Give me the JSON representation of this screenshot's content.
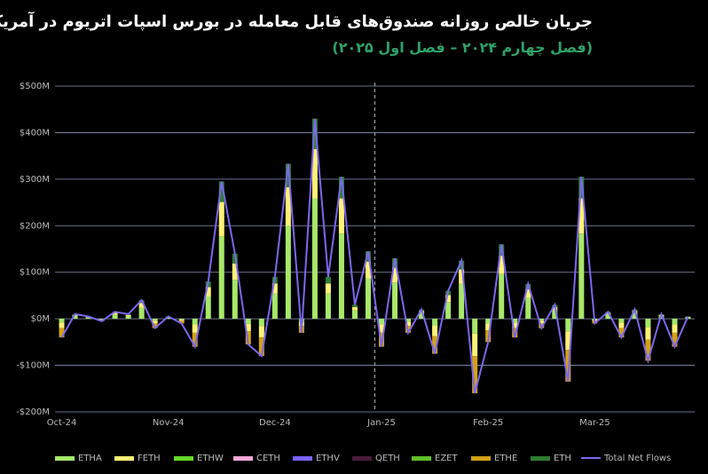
{
  "chart_data": {
    "type": "bar",
    "title": "جریان خالص روزانه صندوق‌های قابل معامله در بورس اسپات اتریوم در آمریکا",
    "subtitle": "(فصل چهارم ۲۰۲۴ – فصل اول ۲۰۲۵)",
    "categories": [
      "Oct-24",
      null,
      null,
      null,
      null,
      null,
      null,
      null,
      "Nov-24",
      null,
      null,
      null,
      null,
      null,
      null,
      null,
      "Dec-24",
      null,
      null,
      null,
      null,
      null,
      null,
      null,
      "Jan-25",
      null,
      null,
      null,
      null,
      null,
      null,
      null,
      "Feb-25",
      null,
      null,
      null,
      null,
      null,
      null,
      null,
      "Mar-25",
      null,
      null,
      null,
      null,
      null,
      null,
      null
    ],
    "ylim": [
      -200,
      500
    ],
    "yticks": [
      {
        "value": -200,
        "label": "-$200M"
      },
      {
        "value": -100,
        "label": "-$100M"
      },
      {
        "value": 0,
        "label": "$0M"
      },
      {
        "value": 100,
        "label": "$100M"
      },
      {
        "value": 200,
        "label": "$200M"
      },
      {
        "value": 300,
        "label": "$300M"
      },
      {
        "value": 400,
        "label": "$400M"
      },
      {
        "value": 500,
        "label": "$500M"
      }
    ],
    "grid": true,
    "series": [
      {
        "name": "ETHA",
        "color": "#a6e86a",
        "values": [
          -8,
          6,
          3,
          -1,
          9,
          6,
          24,
          -4,
          3,
          -2,
          -12,
          48,
          177,
          84,
          -11,
          -16,
          54,
          200,
          -6,
          258,
          54,
          183,
          18,
          87,
          -12,
          78,
          -6,
          12,
          -15,
          36,
          75,
          -32,
          -10,
          96,
          -8,
          45,
          -4,
          18,
          -27,
          183,
          -2,
          9,
          -8,
          12,
          -18,
          6,
          -12,
          3
        ]
      },
      {
        "name": "FETH",
        "color": "#fff176",
        "values": [
          -12,
          2,
          1,
          -2,
          4,
          2,
          10,
          -6,
          1,
          -3,
          -18,
          20,
          74,
          35,
          -16,
          -24,
          22,
          83,
          -9,
          107,
          22,
          76,
          7,
          36,
          -18,
          32,
          -9,
          5,
          -22,
          15,
          31,
          -48,
          -15,
          40,
          -12,
          19,
          -6,
          7,
          -40,
          76,
          -3,
          4,
          -12,
          5,
          -27,
          2,
          -18,
          1
        ]
      },
      {
        "name": "ETHW",
        "color": "#66d92a",
        "values": [
          0,
          0,
          0,
          0,
          0,
          0,
          0,
          0,
          0,
          0,
          0,
          0,
          0,
          0,
          0,
          0,
          0,
          0,
          0,
          0,
          0,
          0,
          0,
          0,
          0,
          0,
          0,
          0,
          0,
          0,
          0,
          0,
          0,
          0,
          0,
          0,
          0,
          0,
          0,
          0,
          0,
          0,
          0,
          0,
          0,
          0,
          0,
          0
        ]
      },
      {
        "name": "CETH",
        "color": "#f7a8d8",
        "values": [
          0,
          0,
          0,
          0,
          0,
          0,
          0,
          0,
          0,
          0,
          0,
          0,
          0,
          0,
          0,
          0,
          0,
          0,
          0,
          0,
          0,
          0,
          0,
          0,
          0,
          0,
          0,
          0,
          0,
          0,
          0,
          0,
          0,
          0,
          0,
          0,
          0,
          0,
          0,
          0,
          0,
          0,
          0,
          0,
          0,
          0,
          0,
          0
        ]
      },
      {
        "name": "ETHV",
        "color": "#7b61ff",
        "values": [
          0,
          0,
          0,
          0,
          0,
          0,
          0,
          0,
          0,
          0,
          0,
          0,
          0,
          0,
          0,
          0,
          0,
          0,
          0,
          0,
          0,
          0,
          0,
          0,
          0,
          0,
          0,
          0,
          0,
          0,
          0,
          0,
          0,
          0,
          0,
          0,
          0,
          0,
          0,
          0,
          0,
          0,
          0,
          0,
          0,
          0,
          0,
          0
        ]
      },
      {
        "name": "QETH",
        "color": "#4a1a3a",
        "values": [
          0,
          0,
          0,
          0,
          0,
          0,
          0,
          0,
          0,
          0,
          0,
          0,
          0,
          0,
          0,
          0,
          0,
          0,
          0,
          0,
          0,
          0,
          0,
          0,
          0,
          0,
          0,
          0,
          0,
          0,
          0,
          0,
          0,
          0,
          0,
          0,
          0,
          0,
          0,
          0,
          0,
          0,
          0,
          0,
          0,
          0,
          0,
          0
        ]
      },
      {
        "name": "EZET",
        "color": "#5fbf2a",
        "values": [
          0,
          0,
          0,
          0,
          0,
          0,
          0,
          0,
          0,
          0,
          0,
          0,
          0,
          0,
          0,
          0,
          0,
          0,
          0,
          0,
          0,
          0,
          0,
          0,
          0,
          0,
          0,
          0,
          0,
          0,
          0,
          0,
          0,
          0,
          0,
          0,
          0,
          0,
          0,
          0,
          0,
          0,
          0,
          0,
          0,
          0,
          0,
          0
        ]
      },
      {
        "name": "ETHE",
        "color": "#d4a017",
        "values": [
          -20,
          0,
          0,
          -2,
          0,
          0,
          0,
          -10,
          0,
          -5,
          -30,
          0,
          0,
          0,
          -28,
          -40,
          0,
          0,
          -15,
          0,
          0,
          0,
          0,
          0,
          -30,
          0,
          -15,
          0,
          -38,
          0,
          0,
          -80,
          -25,
          0,
          -20,
          0,
          -10,
          0,
          -68,
          0,
          -5,
          0,
          -20,
          0,
          -45,
          0,
          -30,
          0
        ]
      },
      {
        "name": "ETH",
        "color": "#2e7d32",
        "values": [
          0,
          2,
          1,
          0,
          2,
          2,
          6,
          0,
          1,
          0,
          0,
          12,
          44,
          21,
          0,
          0,
          14,
          50,
          0,
          65,
          14,
          46,
          5,
          22,
          0,
          20,
          0,
          3,
          0,
          9,
          19,
          0,
          0,
          24,
          0,
          11,
          0,
          5,
          0,
          46,
          0,
          2,
          0,
          3,
          0,
          2,
          0,
          1
        ]
      }
    ],
    "line": {
      "name": "Total Net Flows",
      "color": "#7b68ee",
      "values": [
        -40,
        10,
        5,
        -5,
        15,
        10,
        40,
        -20,
        5,
        -10,
        -60,
        80,
        295,
        140,
        -55,
        -80,
        90,
        333,
        -30,
        430,
        90,
        305,
        30,
        145,
        -60,
        130,
        -30,
        20,
        -75,
        60,
        125,
        -160,
        -50,
        160,
        -40,
        75,
        -20,
        30,
        -135,
        305,
        -10,
        15,
        -40,
        20,
        -90,
        10,
        -60,
        5
      ]
    }
  }
}
